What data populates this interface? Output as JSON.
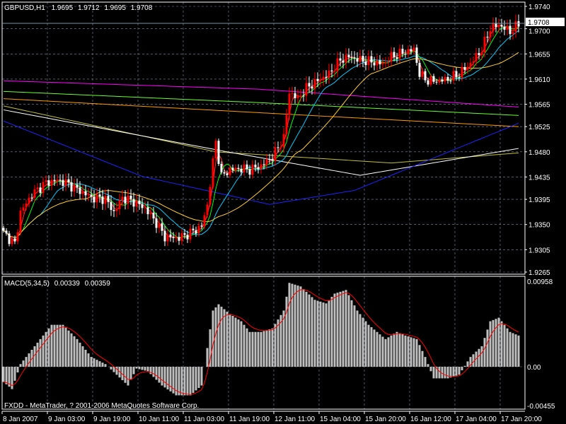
{
  "header": {
    "symbol": "GBPUSD,H1",
    "open": "1.9695",
    "high": "1.9712",
    "low": "1.9695",
    "close": "1.9708"
  },
  "macd_label": {
    "name": "MACD(5,34,5)",
    "value1": "0.00339",
    "value2": "0.00359"
  },
  "footer": "FXDD - MetaTrader, ? 2001-2006 MetaQuotes Software Corp.",
  "current_price_label": "1.9708",
  "colors": {
    "background": "#000000",
    "bull": "#ff0000",
    "bear": "#ffffff",
    "grid": "#8090a0",
    "macd_hist": "#c0c0c0",
    "macd_signal": "#ff0000"
  },
  "chart_data": [
    {
      "type": "candlestick",
      "title": "GBPUSD,H1",
      "price_ticks": [
        "1.9740",
        "1.9700",
        "1.9655",
        "1.9610",
        "1.9565",
        "1.9525",
        "1.9480",
        "1.9435",
        "1.9395",
        "1.9350",
        "1.9305",
        "1.9265"
      ],
      "time_ticks": [
        "8 Jan 2007",
        "9 Jan 03:00",
        "9 Jan 19:00",
        "10 Jan 11:00",
        "11 Jan 03:00",
        "11 Jan 19:00",
        "12 Jan 11:00",
        "15 Jan 04:00",
        "15 Jan 20:00",
        "16 Jan 12:00",
        "17 Jan 04:00",
        "17 Jan 20:00"
      ],
      "ylim": [
        1.9265,
        1.974
      ],
      "bars": 183,
      "grid": true,
      "close_path": [
        [
          0,
          1.9335
        ],
        [
          4,
          1.9315
        ],
        [
          6,
          1.9372
        ],
        [
          10,
          1.9404
        ],
        [
          15,
          1.9425
        ],
        [
          19,
          1.9429
        ],
        [
          22,
          1.9425
        ],
        [
          26,
          1.9413
        ],
        [
          31,
          1.9398
        ],
        [
          36,
          1.9396
        ],
        [
          39,
          1.9372
        ],
        [
          42,
          1.9398
        ],
        [
          46,
          1.9391
        ],
        [
          50,
          1.9379
        ],
        [
          54,
          1.9353
        ],
        [
          57,
          1.9328
        ],
        [
          62,
          1.9326
        ],
        [
          66,
          1.9335
        ],
        [
          70,
          1.9347
        ],
        [
          72,
          1.9385
        ],
        [
          75,
          1.9499
        ],
        [
          77,
          1.9436
        ],
        [
          80,
          1.9448
        ],
        [
          84,
          1.945
        ],
        [
          87,
          1.9448
        ],
        [
          91,
          1.9455
        ],
        [
          95,
          1.9471
        ],
        [
          99,
          1.9505
        ],
        [
          101,
          1.9587
        ],
        [
          104,
          1.9575
        ],
        [
          107,
          1.9594
        ],
        [
          111,
          1.9607
        ],
        [
          115,
          1.9619
        ],
        [
          119,
          1.9644
        ],
        [
          122,
          1.965
        ],
        [
          126,
          1.9644
        ],
        [
          130,
          1.9641
        ],
        [
          134,
          1.9637
        ],
        [
          137,
          1.965
        ],
        [
          141,
          1.9657
        ],
        [
          145,
          1.9663
        ],
        [
          147,
          1.9619
        ],
        [
          150,
          1.9607
        ],
        [
          154,
          1.9607
        ],
        [
          157,
          1.961
        ],
        [
          161,
          1.9619
        ],
        [
          165,
          1.9638
        ],
        [
          169,
          1.9663
        ],
        [
          172,
          1.9701
        ],
        [
          175,
          1.9707
        ],
        [
          179,
          1.9695
        ],
        [
          182,
          1.9708
        ]
      ],
      "moving_averages": [
        {
          "color": "#ff00ff",
          "points": [
            [
              0,
              1.9607
            ],
            [
              90,
              1.9592
            ],
            [
              182,
              1.956
            ]
          ]
        },
        {
          "color": "#66ff33",
          "points": [
            [
              0,
              1.9588
            ],
            [
              90,
              1.9568
            ],
            [
              182,
              1.9545
            ]
          ]
        },
        {
          "color": "#ff9900",
          "points": [
            [
              0,
              1.9575
            ],
            [
              90,
              1.955
            ],
            [
              182,
              1.9525
            ]
          ]
        },
        {
          "color": "#c0c040",
          "points": [
            [
              0,
              1.9562
            ],
            [
              75,
              1.948
            ],
            [
              137,
              1.946
            ],
            [
              182,
              1.9478
            ]
          ]
        },
        {
          "color": "#ffffff",
          "points": [
            [
              0,
              1.9555
            ],
            [
              79,
              1.948
            ],
            [
              126,
              1.9438
            ],
            [
              182,
              1.9486
            ]
          ]
        },
        {
          "color": "#2020ff",
          "points": [
            [
              0,
              1.9535
            ],
            [
              49,
              1.9436
            ],
            [
              94,
              1.9386
            ],
            [
              124,
              1.9411
            ],
            [
              182,
              1.9531
            ]
          ]
        }
      ],
      "fast_ma_periods": [
        {
          "period": 3,
          "color": "#ff3030"
        },
        {
          "period": 6,
          "color": "#00ff00"
        },
        {
          "period": 14,
          "color": "#00ccff"
        },
        {
          "period": 30,
          "color": "#ffcc33"
        }
      ]
    },
    {
      "type": "bar",
      "title": "MACD(5,34,5)",
      "ylim": [
        -0.00455,
        0.00958
      ],
      "ticks": [
        "0.00958",
        "0.00",
        "-0.00455"
      ],
      "histogram_path": [
        [
          0,
          -0.0017
        ],
        [
          3,
          -0.0025
        ],
        [
          6,
          0.0003
        ],
        [
          11,
          0.0023
        ],
        [
          17,
          0.0047
        ],
        [
          21,
          0.0047
        ],
        [
          26,
          0.0031
        ],
        [
          31,
          0.0011
        ],
        [
          36,
          0.0003
        ],
        [
          40,
          -0.0009
        ],
        [
          44,
          -0.0021
        ],
        [
          47,
          -0.0002
        ],
        [
          51,
          -0.0005
        ],
        [
          56,
          -0.0021
        ],
        [
          61,
          -0.0032
        ],
        [
          66,
          -0.0032
        ],
        [
          70,
          -0.0021
        ],
        [
          74,
          0.0063
        ],
        [
          76,
          0.007
        ],
        [
          80,
          0.0059
        ],
        [
          84,
          0.0051
        ],
        [
          87,
          0.0039
        ],
        [
          91,
          0.0039
        ],
        [
          95,
          0.0043
        ],
        [
          99,
          0.0063
        ],
        [
          101,
          0.0094
        ],
        [
          105,
          0.009
        ],
        [
          110,
          0.0075
        ],
        [
          114,
          0.0071
        ],
        [
          117,
          0.0082
        ],
        [
          121,
          0.0086
        ],
        [
          125,
          0.0063
        ],
        [
          129,
          0.0047
        ],
        [
          132,
          0.0039
        ],
        [
          135,
          0.0031
        ],
        [
          139,
          0.0039
        ],
        [
          142,
          0.0035
        ],
        [
          146,
          0.0031
        ],
        [
          149,
          0.0011
        ],
        [
          152,
          -0.0013
        ],
        [
          157,
          -0.0013
        ],
        [
          161,
          -0.0009
        ],
        [
          165,
          0.0011
        ],
        [
          169,
          0.0023
        ],
        [
          172,
          0.0051
        ],
        [
          175,
          0.0055
        ],
        [
          179,
          0.0039
        ],
        [
          182,
          0.0035
        ]
      ]
    }
  ]
}
